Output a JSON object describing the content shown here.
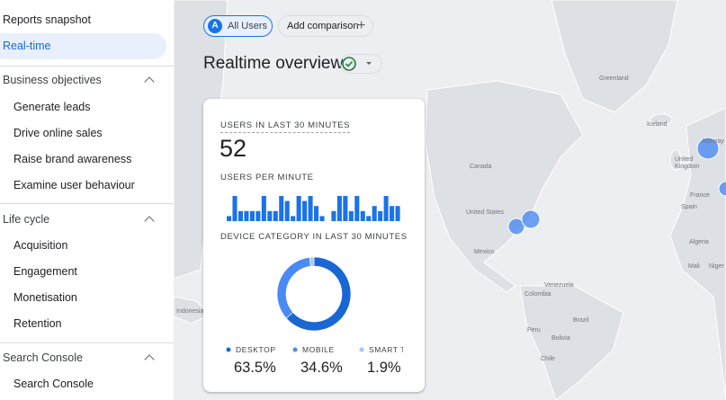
{
  "sidebar": {
    "top": [
      "Reports snapshot",
      "Real-time"
    ],
    "sections": [
      {
        "title": "Business objectives",
        "items": [
          "Generate leads",
          "Drive online sales",
          "Raise brand awareness",
          "Examine user behaviour"
        ]
      },
      {
        "title": "Life cycle",
        "items": [
          "Acquisition",
          "Engagement",
          "Monetisation",
          "Retention"
        ]
      },
      {
        "title": "Search Console",
        "items": [
          "Search Console"
        ]
      }
    ]
  },
  "toolbar": {
    "segment_badge": "A",
    "segment": "All Users",
    "add_comparison": "Add comparison"
  },
  "page_title": "Realtime overview",
  "card": {
    "users_label": "USERS IN LAST 30 MINUTES",
    "users_value": 52,
    "per_minute_label": "USERS PER MINUTE",
    "per_minute": {
      "type": "bar",
      "color": "#1a73e8",
      "values": [
        1,
        5,
        2,
        2,
        2,
        2,
        5,
        2,
        2,
        5,
        4,
        1,
        5,
        4,
        5,
        3,
        1,
        0,
        2,
        5,
        5,
        2,
        5,
        2,
        1,
        3,
        2,
        5,
        3,
        3
      ]
    },
    "device_label": "DEVICE CATEGORY IN LAST 30 MINUTES",
    "devices": {
      "type": "pie",
      "categories": [
        "DESKTOP",
        "MOBILE",
        "SMART TV"
      ],
      "values": [
        63.5,
        34.6,
        1.9
      ],
      "value_labels": [
        "63.5%",
        "34.6%",
        "1.9%"
      ],
      "colors": [
        "#1967d2",
        "#4a8af4",
        "#a8c7fa"
      ]
    }
  },
  "map": {
    "labels": [
      "Greenland",
      "Iceland",
      "Canada",
      "United States",
      "Mexico",
      "Norway",
      "United Kingdom",
      "France",
      "Spain",
      "Algeria",
      "Mali",
      "Niger",
      "Venezuela",
      "Colombia",
      "Peru",
      "Brazil",
      "Bolivia",
      "Chile",
      "Indonesia"
    ]
  }
}
